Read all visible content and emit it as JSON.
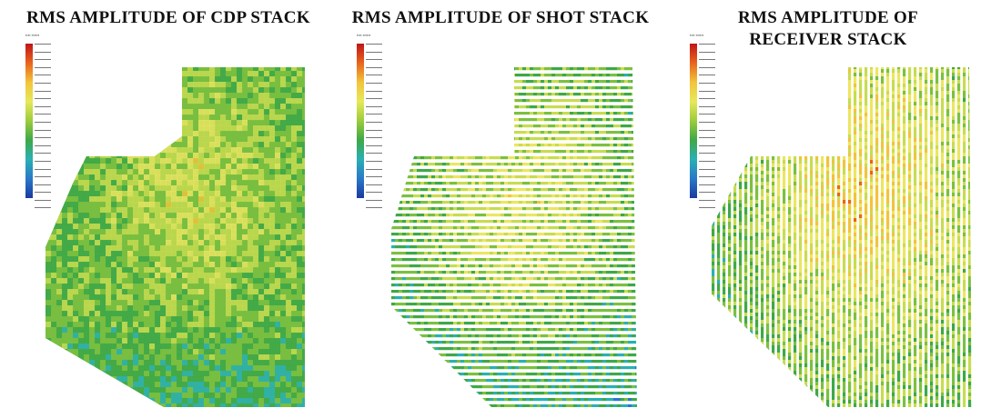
{
  "panels": [
    {
      "title": "RMS AMPLITUDE  OF  CDP STACK",
      "pattern": "continuous"
    },
    {
      "title": "RMS AMPLITUDE  OF  SHOT STACK",
      "pattern": "horizontal-lines"
    },
    {
      "title": "RMS AMPLITUDE  OF  RECEIVER STACK",
      "pattern": "vertical-lines"
    }
  ],
  "colorbar": {
    "colors": [
      "#c0141a",
      "#e8641c",
      "#f2c43a",
      "#e6e85a",
      "#9ccc3c",
      "#3ea848",
      "#2ab0b4",
      "#2a78c8",
      "#1a3aa0"
    ]
  }
}
